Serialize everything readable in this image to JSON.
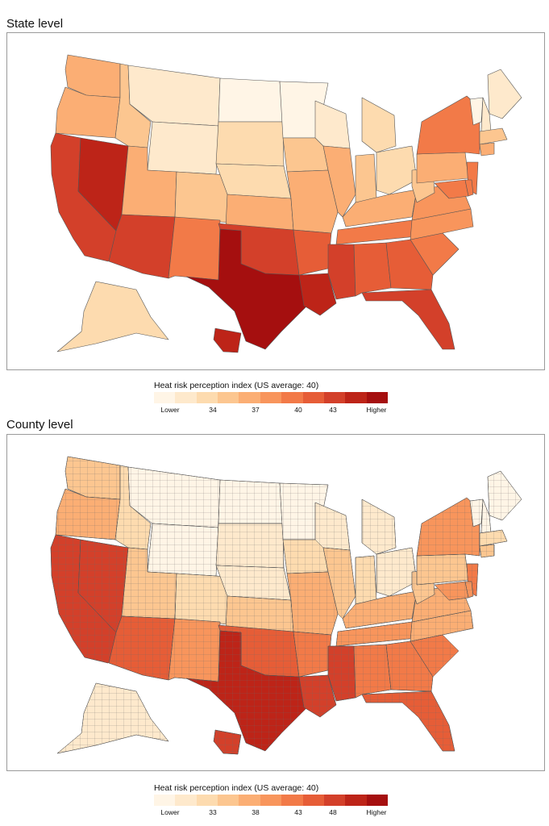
{
  "state_panel": {
    "title": "State level",
    "legend": {
      "title": "Heat risk perception index (US average: 40)",
      "labels": [
        "Lower",
        "34",
        "37",
        "40",
        "43",
        "Higher"
      ]
    }
  },
  "county_panel": {
    "title": "County level",
    "legend": {
      "title": "Heat risk perception index (US average: 40)",
      "labels": [
        "Lower",
        "33",
        "38",
        "43",
        "48",
        "Higher"
      ]
    }
  },
  "colors": {
    "scale": [
      "#fff5e6",
      "#fee9cc",
      "#fddbaf",
      "#fcc690",
      "#fbae74",
      "#f8955c",
      "#f27a48",
      "#e65d37",
      "#d3402a",
      "#bd2418",
      "#a50f0f"
    ],
    "border": "#555555",
    "frame": "#9a9a9a"
  },
  "map_data": {
    "state_values": {
      "WA": 37,
      "OR": 38,
      "CA": 44,
      "NV": 45,
      "ID": 35,
      "MT": 32,
      "WY": 32,
      "UT": 37,
      "CO": 35,
      "AZ": 43,
      "NM": 40,
      "ND": 31,
      "SD": 34,
      "NE": 34,
      "KS": 37,
      "OK": 43,
      "TX": 47,
      "MN": 31,
      "IA": 35,
      "MO": 38,
      "AR": 42,
      "LA": 45,
      "WI": 33,
      "IL": 37,
      "IN": 35,
      "MI": 34,
      "OH": 34,
      "KY": 38,
      "TN": 40,
      "MS": 44,
      "AL": 42,
      "GA": 42,
      "FL": 43,
      "SC": 41,
      "NC": 39,
      "VA": 39,
      "WV": 36,
      "PA": 37,
      "NY": 40,
      "ME": 32,
      "VT": 31,
      "NH": 32,
      "MA": 35,
      "CT": 37,
      "NJ": 41,
      "MD": 40,
      "DE": 40,
      "AK": 34,
      "HI": 45
    }
  }
}
